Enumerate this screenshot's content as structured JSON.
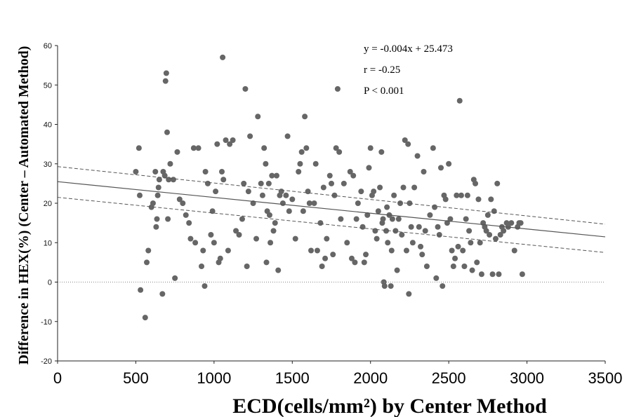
{
  "chart_data": {
    "type": "scatter",
    "title": "",
    "xlabel": "ECD(cells/mm²) by Center Method",
    "ylabel": "Difference in HEX(%) (Center – Automated Method)",
    "xlim": [
      0,
      3500
    ],
    "ylim": [
      -20,
      60
    ],
    "x_ticks": [
      "0",
      "500",
      "1000",
      "1500",
      "2000",
      "2500",
      "3000",
      "3500"
    ],
    "y_ticks": [
      "-20",
      "-10",
      "0",
      "10",
      "20",
      "30",
      "40",
      "50",
      "60"
    ],
    "grid": false,
    "legend": "none",
    "annotations": [
      "y = -0.004x + 25.473",
      "r = -0.25",
      "P < 0.001"
    ],
    "regression": {
      "slope": -0.004,
      "intercept": 25.473
    },
    "confidence_band": {
      "upper": [
        [
          0,
          29.3
        ],
        [
          3500,
          14.7
        ]
      ],
      "lower": [
        [
          0,
          21.5
        ],
        [
          3500,
          7.5
        ]
      ]
    },
    "zero_line": 0,
    "point_color": "#666666",
    "points": [
      [
        500,
        28
      ],
      [
        520,
        34
      ],
      [
        525,
        22
      ],
      [
        530,
        -2
      ],
      [
        560,
        -9
      ],
      [
        570,
        5
      ],
      [
        580,
        8
      ],
      [
        600,
        19
      ],
      [
        610,
        20
      ],
      [
        625,
        28
      ],
      [
        630,
        14
      ],
      [
        635,
        16
      ],
      [
        640,
        22
      ],
      [
        645,
        24
      ],
      [
        650,
        26
      ],
      [
        670,
        -3
      ],
      [
        675,
        28
      ],
      [
        685,
        27
      ],
      [
        690,
        51
      ],
      [
        695,
        53
      ],
      [
        700,
        38
      ],
      [
        705,
        16
      ],
      [
        710,
        26
      ],
      [
        720,
        30
      ],
      [
        740,
        26
      ],
      [
        750,
        1
      ],
      [
        765,
        33
      ],
      [
        780,
        21
      ],
      [
        800,
        20
      ],
      [
        820,
        17
      ],
      [
        840,
        15
      ],
      [
        850,
        11
      ],
      [
        870,
        34
      ],
      [
        880,
        10
      ],
      [
        900,
        34
      ],
      [
        920,
        4
      ],
      [
        930,
        8
      ],
      [
        940,
        -1
      ],
      [
        945,
        28
      ],
      [
        960,
        25
      ],
      [
        980,
        12
      ],
      [
        990,
        18
      ],
      [
        1000,
        10
      ],
      [
        1010,
        23
      ],
      [
        1020,
        35
      ],
      [
        1030,
        5
      ],
      [
        1040,
        6
      ],
      [
        1050,
        28
      ],
      [
        1055,
        57
      ],
      [
        1060,
        26
      ],
      [
        1075,
        36
      ],
      [
        1090,
        8
      ],
      [
        1100,
        35
      ],
      [
        1120,
        36
      ],
      [
        1140,
        13
      ],
      [
        1160,
        12
      ],
      [
        1180,
        16
      ],
      [
        1190,
        25
      ],
      [
        1200,
        49
      ],
      [
        1210,
        4
      ],
      [
        1220,
        23
      ],
      [
        1230,
        37
      ],
      [
        1250,
        20
      ],
      [
        1270,
        11
      ],
      [
        1280,
        42
      ],
      [
        1300,
        25
      ],
      [
        1310,
        22
      ],
      [
        1320,
        34
      ],
      [
        1330,
        30
      ],
      [
        1335,
        5
      ],
      [
        1340,
        18
      ],
      [
        1350,
        25
      ],
      [
        1355,
        17
      ],
      [
        1360,
        10
      ],
      [
        1370,
        27
      ],
      [
        1380,
        13
      ],
      [
        1390,
        15
      ],
      [
        1400,
        27
      ],
      [
        1410,
        3
      ],
      [
        1420,
        22
      ],
      [
        1430,
        23
      ],
      [
        1440,
        20
      ],
      [
        1460,
        22
      ],
      [
        1470,
        37
      ],
      [
        1480,
        18
      ],
      [
        1500,
        21
      ],
      [
        1520,
        11
      ],
      [
        1540,
        28
      ],
      [
        1550,
        30
      ],
      [
        1560,
        33
      ],
      [
        1570,
        18
      ],
      [
        1580,
        42
      ],
      [
        1590,
        34
      ],
      [
        1600,
        23
      ],
      [
        1610,
        20
      ],
      [
        1620,
        8
      ],
      [
        1640,
        20
      ],
      [
        1650,
        30
      ],
      [
        1660,
        8
      ],
      [
        1680,
        15
      ],
      [
        1690,
        4
      ],
      [
        1700,
        24
      ],
      [
        1710,
        6
      ],
      [
        1720,
        11
      ],
      [
        1740,
        27
      ],
      [
        1750,
        25
      ],
      [
        1760,
        7
      ],
      [
        1770,
        22
      ],
      [
        1780,
        34
      ],
      [
        1790,
        49
      ],
      [
        1800,
        33
      ],
      [
        1810,
        16
      ],
      [
        1830,
        25
      ],
      [
        1850,
        10
      ],
      [
        1870,
        28
      ],
      [
        1880,
        6
      ],
      [
        1890,
        27
      ],
      [
        1900,
        5
      ],
      [
        1910,
        16
      ],
      [
        1920,
        20
      ],
      [
        1940,
        23
      ],
      [
        1950,
        14
      ],
      [
        1960,
        5
      ],
      [
        1970,
        7
      ],
      [
        1980,
        17
      ],
      [
        1990,
        29
      ],
      [
        2000,
        34
      ],
      [
        2010,
        22
      ],
      [
        2020,
        23
      ],
      [
        2030,
        13
      ],
      [
        2040,
        11
      ],
      [
        2050,
        18
      ],
      [
        2060,
        24
      ],
      [
        2070,
        33
      ],
      [
        2075,
        15
      ],
      [
        2080,
        16
      ],
      [
        2085,
        0
      ],
      [
        2090,
        -1
      ],
      [
        2100,
        13
      ],
      [
        2105,
        19
      ],
      [
        2110,
        10
      ],
      [
        2120,
        17
      ],
      [
        2130,
        -1
      ],
      [
        2135,
        8
      ],
      [
        2140,
        16
      ],
      [
        2150,
        22
      ],
      [
        2160,
        13
      ],
      [
        2170,
        3
      ],
      [
        2180,
        16
      ],
      [
        2190,
        20
      ],
      [
        2200,
        12
      ],
      [
        2210,
        24
      ],
      [
        2220,
        36
      ],
      [
        2230,
        8
      ],
      [
        2240,
        35
      ],
      [
        2245,
        -3
      ],
      [
        2250,
        20
      ],
      [
        2260,
        14
      ],
      [
        2270,
        10
      ],
      [
        2280,
        24
      ],
      [
        2300,
        32
      ],
      [
        2310,
        14
      ],
      [
        2320,
        9
      ],
      [
        2330,
        7
      ],
      [
        2340,
        28
      ],
      [
        2350,
        13
      ],
      [
        2360,
        4
      ],
      [
        2380,
        17
      ],
      [
        2400,
        34
      ],
      [
        2410,
        19
      ],
      [
        2420,
        1
      ],
      [
        2430,
        14
      ],
      [
        2440,
        12
      ],
      [
        2450,
        29
      ],
      [
        2460,
        -1
      ],
      [
        2470,
        22
      ],
      [
        2480,
        21
      ],
      [
        2490,
        15
      ],
      [
        2500,
        30
      ],
      [
        2510,
        16
      ],
      [
        2520,
        8
      ],
      [
        2530,
        4
      ],
      [
        2540,
        6
      ],
      [
        2550,
        22
      ],
      [
        2560,
        9
      ],
      [
        2570,
        46
      ],
      [
        2580,
        22
      ],
      [
        2590,
        8
      ],
      [
        2600,
        4
      ],
      [
        2610,
        16
      ],
      [
        2620,
        22
      ],
      [
        2630,
        13
      ],
      [
        2640,
        10
      ],
      [
        2650,
        3
      ],
      [
        2660,
        26
      ],
      [
        2670,
        25
      ],
      [
        2680,
        5
      ],
      [
        2690,
        21
      ],
      [
        2700,
        10
      ],
      [
        2710,
        2
      ],
      [
        2720,
        15
      ],
      [
        2730,
        14
      ],
      [
        2740,
        13
      ],
      [
        2750,
        17
      ],
      [
        2760,
        12
      ],
      [
        2770,
        21
      ],
      [
        2780,
        2
      ],
      [
        2790,
        18
      ],
      [
        2800,
        11
      ],
      [
        2810,
        25
      ],
      [
        2820,
        2
      ],
      [
        2830,
        12
      ],
      [
        2840,
        14
      ],
      [
        2850,
        13
      ],
      [
        2870,
        15
      ],
      [
        2880,
        14
      ],
      [
        2900,
        15
      ],
      [
        2920,
        8
      ],
      [
        2940,
        14
      ],
      [
        2950,
        15
      ],
      [
        2960,
        15
      ],
      [
        2970,
        2
      ]
    ]
  }
}
